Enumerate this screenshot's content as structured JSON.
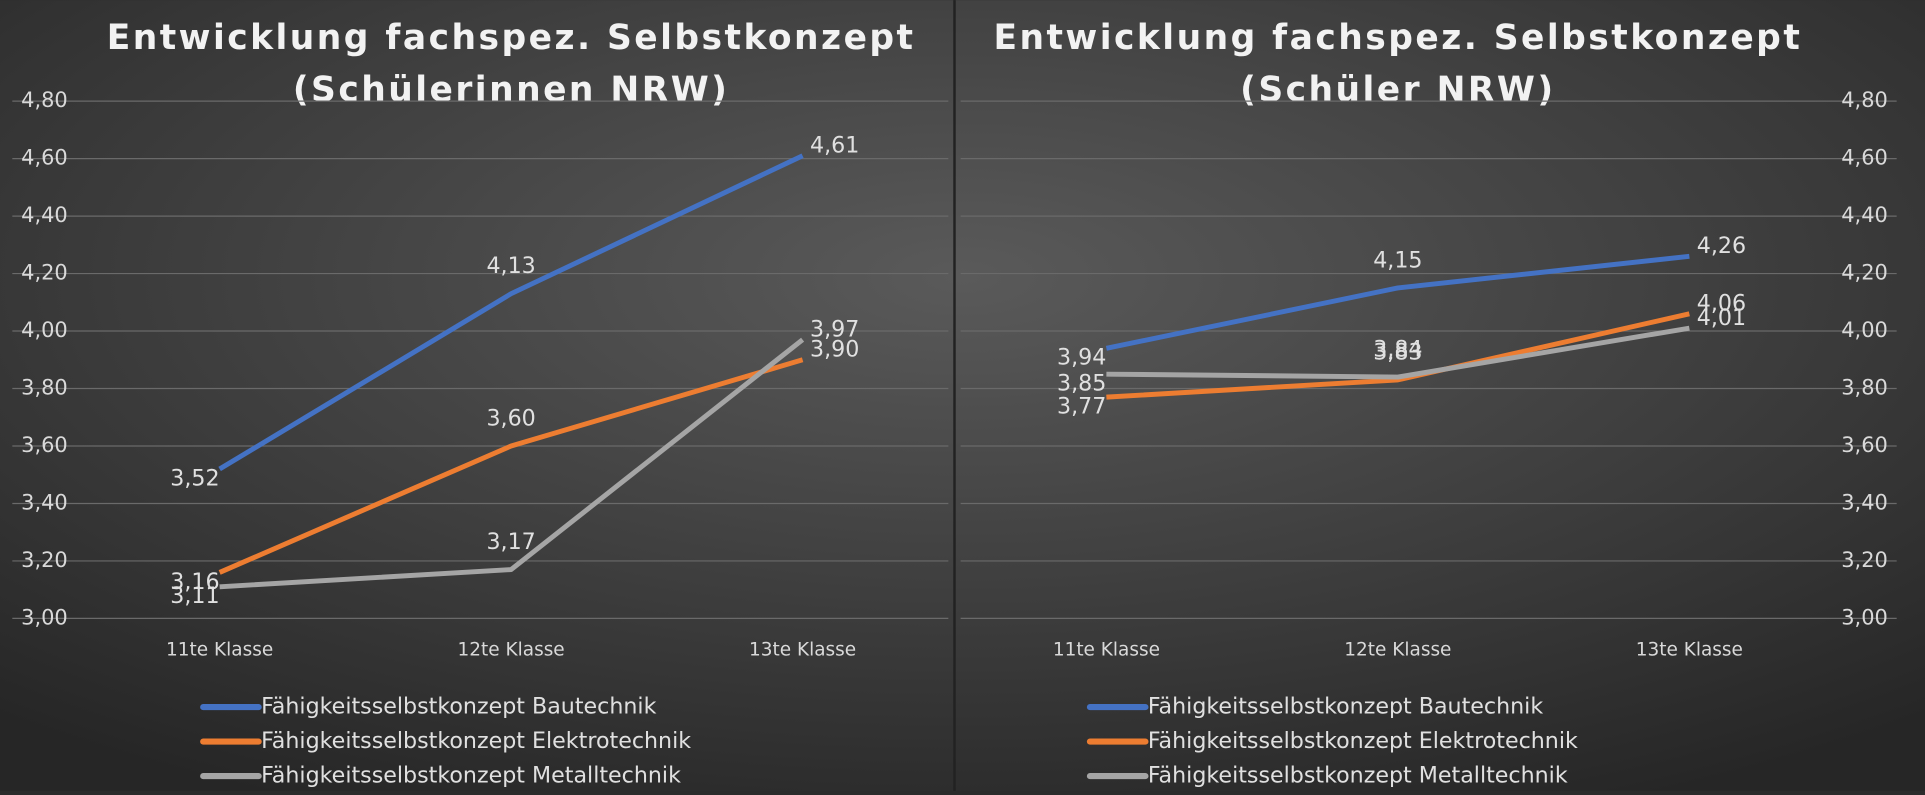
{
  "chart_data": [
    {
      "type": "line",
      "title": [
        "Entwicklung fachspez. Selbstkonzept",
        "(Schülerinnen NRW)"
      ],
      "categories": [
        "11te Klasse",
        "12te Klasse",
        "13te Klasse"
      ],
      "series": [
        {
          "name": "Fähigkeitsselbstkonzept Bautechnik",
          "color": "#4472c4",
          "values": [
            3.52,
            4.13,
            4.61
          ],
          "value_labels": [
            "3,52",
            "4,13",
            "4,61"
          ]
        },
        {
          "name": "Fähigkeitsselbstkonzept Elektrotechnik",
          "color": "#ed7d31",
          "values": [
            3.16,
            3.6,
            3.9
          ],
          "value_labels": [
            "3,16",
            "3,60",
            "3,90"
          ]
        },
        {
          "name": "Fähigkeitsselbstkonzept Metalltechnik",
          "color": "#a5a5a5",
          "values": [
            3.11,
            3.17,
            3.97
          ],
          "value_labels": [
            "3,11",
            "3,17",
            "3,97"
          ]
        }
      ],
      "ylim": [
        3.0,
        4.8
      ],
      "yticks": [
        {
          "value": 3.0,
          "label": "3,00"
        },
        {
          "value": 3.2,
          "label": "3,20"
        },
        {
          "value": 3.4,
          "label": "3,40"
        },
        {
          "value": 3.6,
          "label": "3,60"
        },
        {
          "value": 3.8,
          "label": "3,80"
        },
        {
          "value": 4.0,
          "label": "4,00"
        },
        {
          "value": 4.2,
          "label": "4,20"
        },
        {
          "value": 4.4,
          "label": "4,40"
        },
        {
          "value": 4.6,
          "label": "4,60"
        },
        {
          "value": 4.8,
          "label": "4,80"
        }
      ],
      "y_axis_position": "left",
      "grid": true,
      "legend": "bottom"
    },
    {
      "type": "line",
      "title": [
        "Entwicklung fachspez. Selbstkonzept",
        "(Schüler NRW)"
      ],
      "categories": [
        "11te Klasse",
        "12te Klasse",
        "13te Klasse"
      ],
      "series": [
        {
          "name": "Fähigkeitsselbstkonzept Bautechnik",
          "color": "#4472c4",
          "values": [
            3.94,
            4.15,
            4.26
          ],
          "value_labels": [
            "3,94",
            "4,15",
            "4,26"
          ]
        },
        {
          "name": "Fähigkeitsselbstkonzept Elektrotechnik",
          "color": "#ed7d31",
          "values": [
            3.77,
            3.83,
            4.06
          ],
          "value_labels": [
            "3,77",
            "3,83",
            "4,06"
          ]
        },
        {
          "name": "Fähigkeitsselbstkonzept Metalltechnik",
          "color": "#a5a5a5",
          "values": [
            3.85,
            3.84,
            4.01
          ],
          "value_labels": [
            "3,85",
            "3,84",
            "4,01"
          ]
        }
      ],
      "ylim": [
        3.0,
        4.8
      ],
      "yticks": [
        {
          "value": 3.0,
          "label": "3,00"
        },
        {
          "value": 3.2,
          "label": "3,20"
        },
        {
          "value": 3.4,
          "label": "3,40"
        },
        {
          "value": 3.6,
          "label": "3,60"
        },
        {
          "value": 3.8,
          "label": "3,80"
        },
        {
          "value": 4.0,
          "label": "4,00"
        },
        {
          "value": 4.2,
          "label": "4,20"
        },
        {
          "value": 4.4,
          "label": "4,40"
        },
        {
          "value": 4.6,
          "label": "4,60"
        },
        {
          "value": 4.8,
          "label": "4,80"
        }
      ],
      "y_axis_position": "right",
      "grid": true,
      "legend": "bottom"
    }
  ]
}
